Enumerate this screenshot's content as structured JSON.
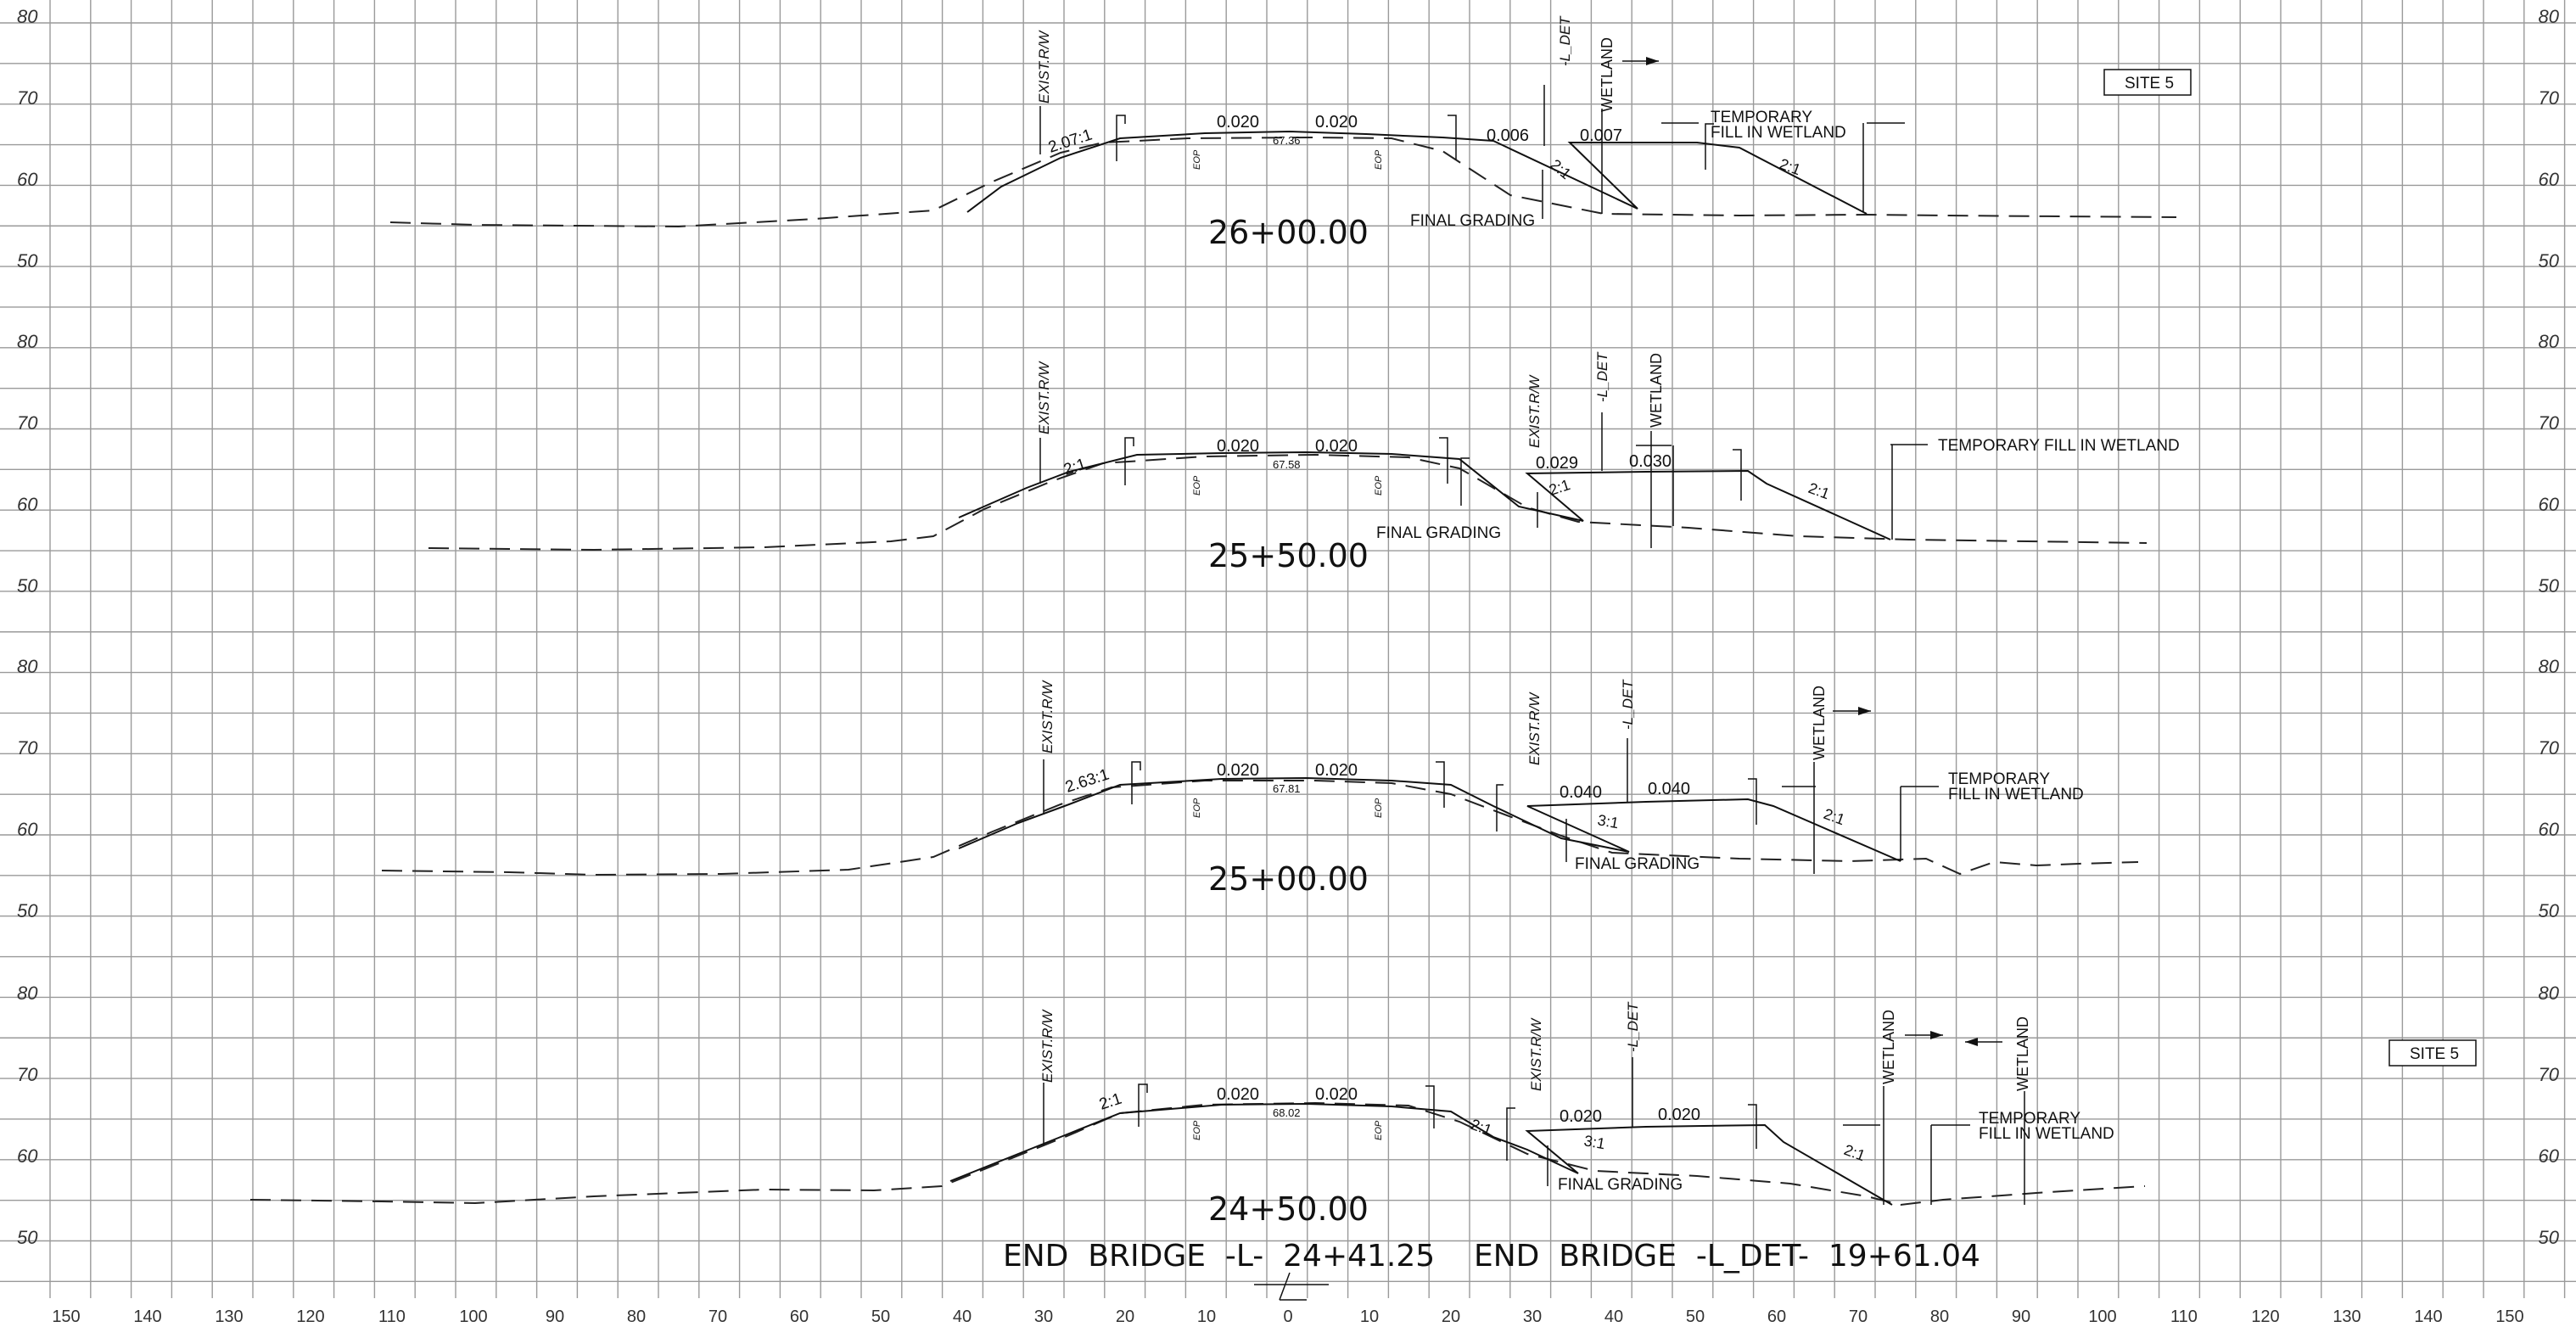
{
  "grid": {
    "x_ticks": [
      "150",
      "140",
      "130",
      "120",
      "110",
      "100",
      "90",
      "80",
      "70",
      "60",
      "50",
      "40",
      "30",
      "20",
      "10",
      "0",
      "10",
      "20",
      "30",
      "40",
      "50",
      "60",
      "70",
      "80",
      "90",
      "100",
      "110",
      "120",
      "130",
      "140",
      "150"
    ],
    "y_ticks": [
      "80",
      "70",
      "60",
      "50"
    ]
  },
  "site_label": "SITE 5",
  "sections": [
    {
      "station": "26+00.00",
      "exist_rw": "EXIST.R/W",
      "l_det": "-L_DET",
      "wetland": "WETLAND",
      "left_slope": "2.07:1",
      "slope_a": "0.020",
      "slope_b": "0.020",
      "cl_elev": "67.36",
      "eop": "EOP",
      "det_slope_a": "0.006",
      "det_slope_b": "0.007",
      "side_slope": "2:1",
      "right_slope": "2:1",
      "final_grading": "FINAL GRADING",
      "temp_fill_1": "TEMPORARY",
      "temp_fill_2": "FILL IN WETLAND"
    },
    {
      "station": "25+50.00",
      "exist_rw": "EXIST.R/W",
      "l_det": "-L_DET",
      "wetland": "WETLAND",
      "left_slope": "2:1",
      "slope_a": "0.020",
      "slope_b": "0.020",
      "cl_elev": "67.58",
      "eop": "EOP",
      "det_slope_a": "0.029",
      "det_slope_b": "0.030",
      "side_slope": "2:1",
      "right_slope": "2:1",
      "final_grading": "FINAL GRADING",
      "temp_fill_1": "TEMPORARY FILL IN WETLAND"
    },
    {
      "station": "25+00.00",
      "exist_rw": "EXIST.R/W",
      "l_det": "-L_DET",
      "wetland": "WETLAND",
      "left_slope": "2.63:1",
      "slope_a": "0.020",
      "slope_b": "0.020",
      "cl_elev": "67.81",
      "eop": "EOP",
      "det_slope_a": "0.040",
      "det_slope_b": "0.040",
      "side_slope": "3:1",
      "right_slope": "2:1",
      "final_grading": "FINAL GRADING",
      "temp_fill_1": "TEMPORARY",
      "temp_fill_2": "FILL IN WETLAND"
    },
    {
      "station": "24+50.00",
      "exist_rw": "EXIST.R/W",
      "l_det": "-L_DET",
      "wetland": "WETLAND",
      "left_slope": "2:1",
      "slope_a": "0.020",
      "slope_b": "0.020",
      "cl_elev": "68.02",
      "eop": "EOP",
      "det_slope_a": "0.020",
      "det_slope_b": "0.020",
      "side_slope": "3:1",
      "mid_slope": "2:1",
      "right_slope": "2:1",
      "final_grading": "FINAL GRADING",
      "temp_fill_1": "TEMPORARY",
      "temp_fill_2": "FILL IN WETLAND"
    }
  ],
  "end_bridge": "END  BRIDGE  -L-  24+41.25    END  BRIDGE  -L_DET-  19+61.04"
}
